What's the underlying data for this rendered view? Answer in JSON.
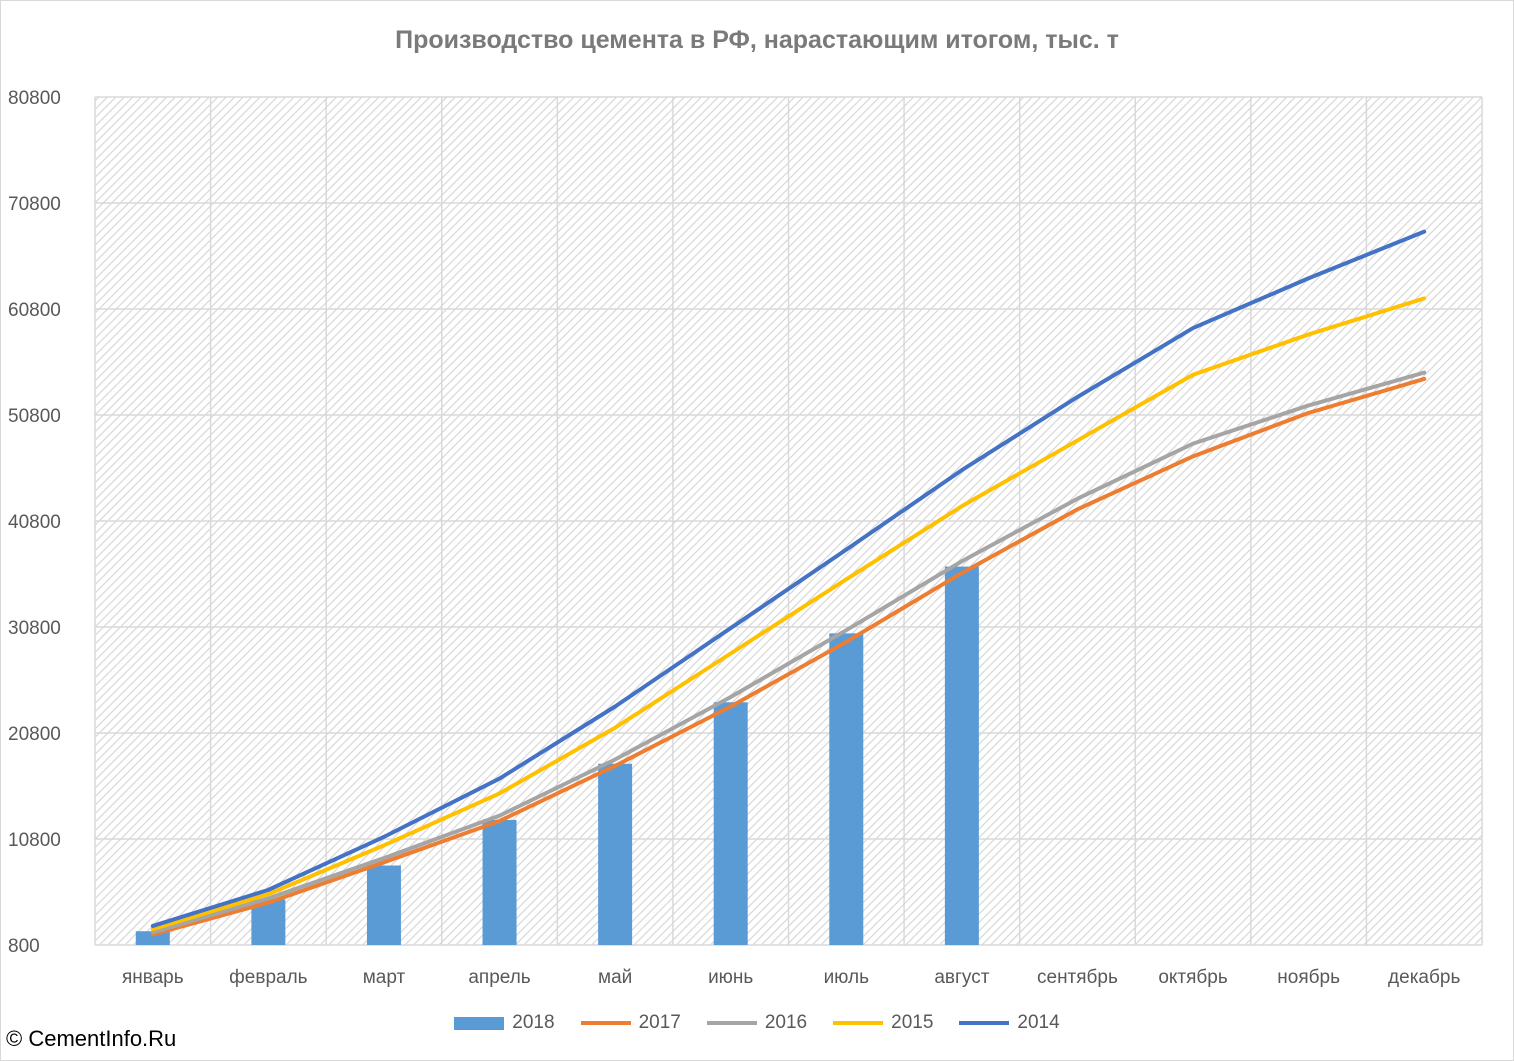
{
  "chart_data": {
    "type": "bar",
    "title": "Производство цемента в РФ, нарастающим итогом, тыс. т",
    "categories": [
      "январь",
      "февраль",
      "март",
      "апрель",
      "май",
      "июнь",
      "июль",
      "август",
      "сентябрь",
      "октябрь",
      "ноябрь",
      "декабрь"
    ],
    "ylim": [
      800,
      80800
    ],
    "yticks": [
      "800",
      "10800",
      "20800",
      "30800",
      "40800",
      "50800",
      "60800",
      "70800",
      "80800"
    ],
    "grid": true,
    "legend_position": "bottom",
    "series": [
      {
        "name": "2018",
        "type": "bar",
        "color": "#5b9bd5",
        "values": [
          2100,
          5100,
          8300,
          12600,
          17900,
          23700,
          30200,
          36500,
          null,
          null,
          null,
          null
        ]
      },
      {
        "name": "2017",
        "type": "line",
        "color": "#ed7d31",
        "values": [
          1800,
          4800,
          8600,
          12500,
          17700,
          23300,
          29400,
          35900,
          41900,
          46900,
          51000,
          54200
        ]
      },
      {
        "name": "2016",
        "type": "line",
        "color": "#a5a5a5",
        "values": [
          2000,
          5200,
          9000,
          13000,
          18300,
          24200,
          30500,
          37000,
          42900,
          48100,
          51700,
          54800
        ]
      },
      {
        "name": "2015",
        "type": "line",
        "color": "#ffc000",
        "values": [
          2300,
          5600,
          10200,
          15100,
          21300,
          28300,
          35300,
          42200,
          48400,
          54600,
          58400,
          61800
        ]
      },
      {
        "name": "2014",
        "type": "line",
        "color": "#4472c4",
        "values": [
          2600,
          6000,
          11000,
          16500,
          23300,
          30700,
          38100,
          45600,
          52500,
          59000,
          63700,
          68100
        ]
      }
    ]
  },
  "copyright": "© CementInfo.Ru"
}
